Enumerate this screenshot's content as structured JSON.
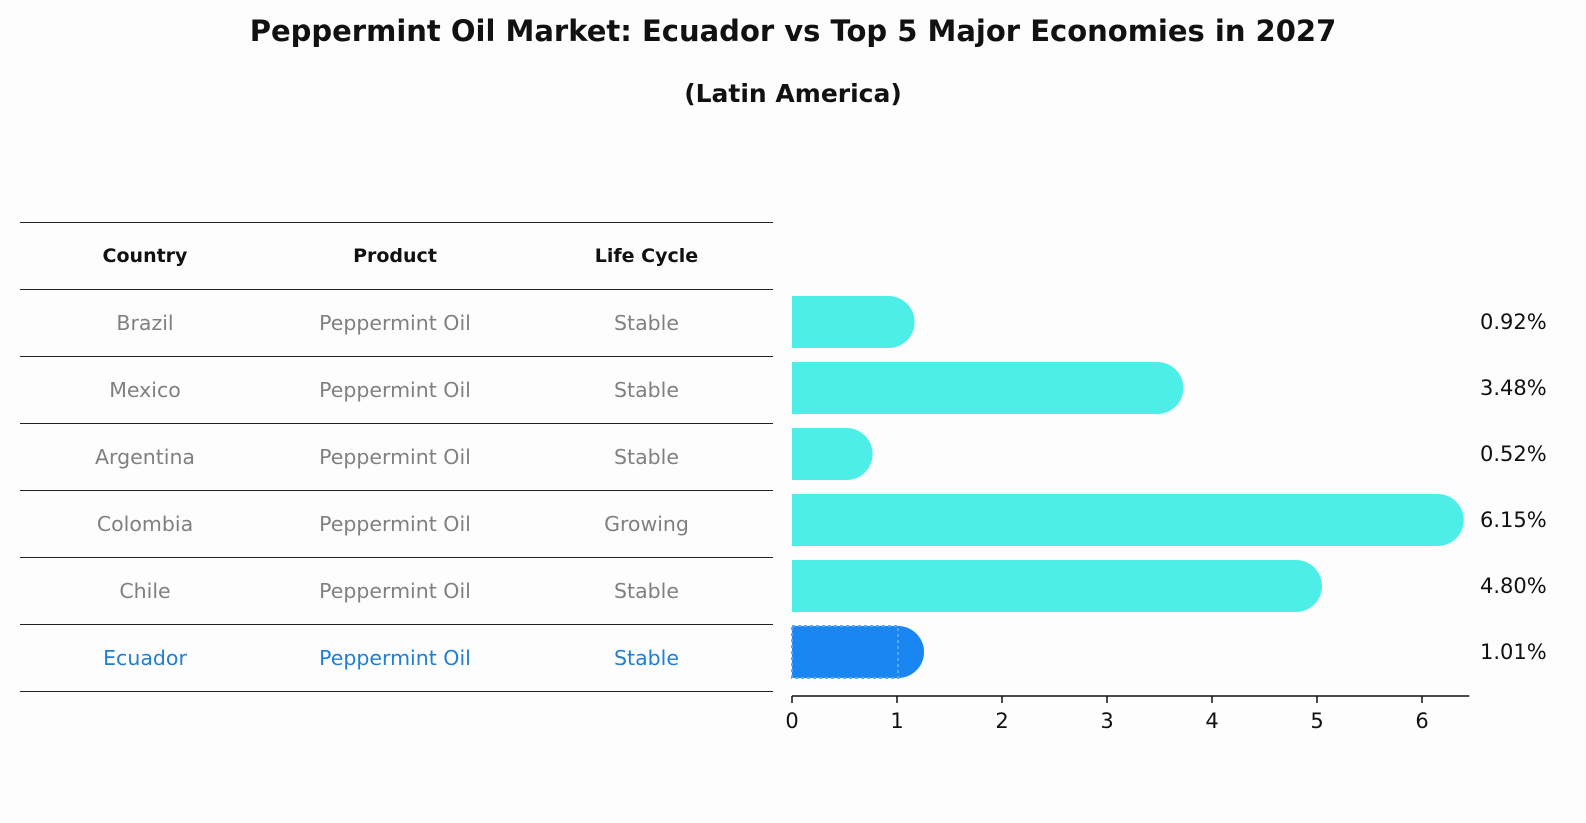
{
  "title": "Peppermint Oil Market: Ecuador vs Top 5 Major Economies in 2027",
  "subtitle": "(Latin America)",
  "table": {
    "headers": [
      "Country",
      "Product",
      "Life Cycle"
    ],
    "rows": [
      {
        "country": "Brazil",
        "product": "Peppermint Oil",
        "life_cycle": "Stable"
      },
      {
        "country": "Mexico",
        "product": "Peppermint Oil",
        "life_cycle": "Stable"
      },
      {
        "country": "Argentina",
        "product": "Peppermint Oil",
        "life_cycle": "Stable"
      },
      {
        "country": "Colombia",
        "product": "Peppermint Oil",
        "life_cycle": "Growing"
      },
      {
        "country": "Chile",
        "product": "Peppermint Oil",
        "life_cycle": "Stable"
      },
      {
        "country": "Ecuador",
        "product": "Peppermint Oil",
        "life_cycle": "Stable"
      }
    ]
  },
  "colors": {
    "bar": "#4deee8",
    "highlight_bar": "#1a86f2",
    "highlight_text": "#1e7fd4",
    "row_text": "#808080"
  },
  "chart_data": {
    "type": "bar",
    "orientation": "horizontal",
    "categories": [
      "Brazil",
      "Mexico",
      "Argentina",
      "Colombia",
      "Chile",
      "Ecuador"
    ],
    "values": [
      0.92,
      3.48,
      0.52,
      6.15,
      4.8,
      1.01
    ],
    "value_labels": [
      "0.92%",
      "3.48%",
      "0.52%",
      "6.15%",
      "4.80%",
      "1.01%"
    ],
    "highlight": "Ecuador",
    "xlim": [
      0,
      6.45
    ],
    "xticks": [
      0,
      1,
      2,
      3,
      4,
      5,
      6
    ],
    "xlabel": "",
    "ylabel": "",
    "grid": false
  }
}
